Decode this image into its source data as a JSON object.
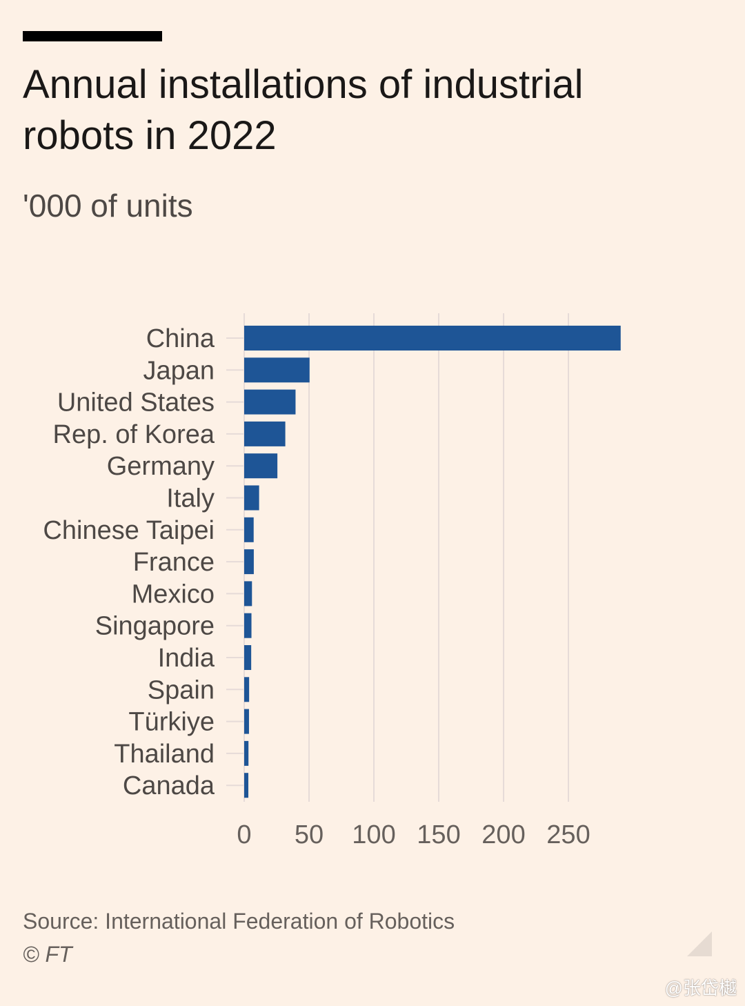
{
  "title": "Annual installations of industrial robots in 2022",
  "subtitle": "'000 of units",
  "source": "Source: International Federation of Robotics",
  "credit": "© FT",
  "watermark": "@张岱樾",
  "colors": {
    "background": "#fdf1e6",
    "bar": "#1e5596",
    "gridline": "#e6dbd8",
    "text": "#33302e"
  },
  "chart_data": {
    "type": "bar",
    "orientation": "horizontal",
    "title": "Annual installations of industrial robots in 2022",
    "subtitle": "'000 of units",
    "xlabel": "",
    "ylabel": "",
    "categories": [
      "China",
      "Japan",
      "United States",
      "Rep. of Korea",
      "Germany",
      "Italy",
      "Chinese Taipei",
      "France",
      "Mexico",
      "Singapore",
      "India",
      "Spain",
      "Türkiye",
      "Thailand",
      "Canada"
    ],
    "values": [
      290.3,
      50.4,
      39.6,
      31.7,
      25.6,
      11.5,
      7.3,
      7.4,
      6.0,
      5.6,
      5.4,
      3.8,
      3.7,
      3.3,
      3.2
    ],
    "xlim": [
      0,
      290
    ],
    "xticks": [
      0,
      50,
      100,
      150,
      200,
      250
    ],
    "grid": true,
    "legend": "none"
  }
}
